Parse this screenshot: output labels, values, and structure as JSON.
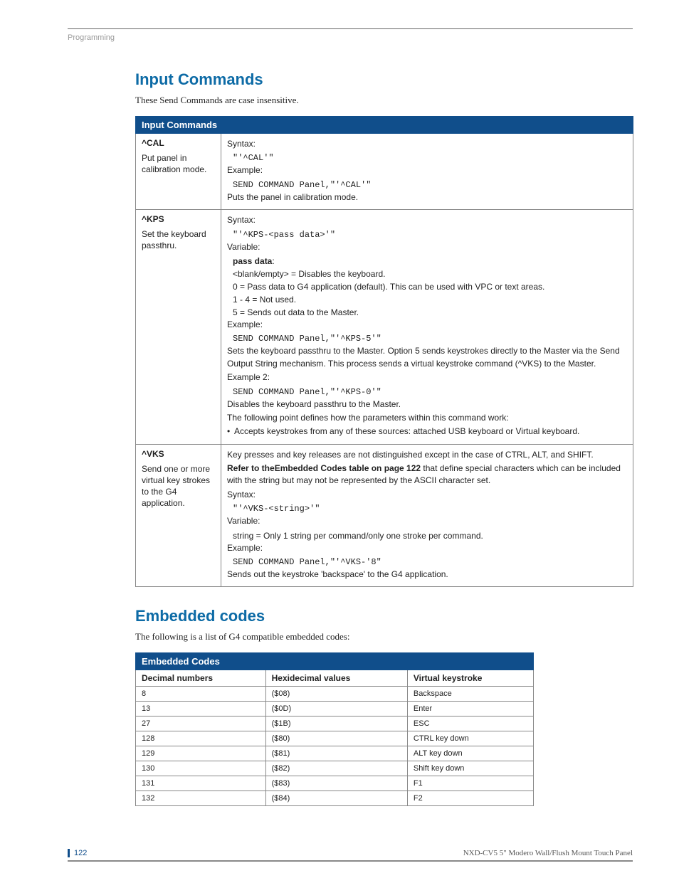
{
  "header": {
    "section": "Programming"
  },
  "section1": {
    "heading": "Input Commands",
    "intro": "These Send Commands are case insensitive.",
    "table_title": "Input Commands",
    "rows": [
      {
        "cmd": "^CAL",
        "desc": "Put panel in calibration mode.",
        "body": {
          "l1": "Syntax:",
          "c1": "\"'^CAL'\"",
          "l2": "Example:",
          "c2": "SEND COMMAND Panel,\"'^CAL'\"",
          "l3": "Puts the panel in calibration mode."
        }
      },
      {
        "cmd": "^KPS",
        "desc": "Set the keyboard passthru.",
        "body": {
          "l1": "Syntax:",
          "c1": "\"'^KPS-<pass data>'\"",
          "l2": "Variable:",
          "b1": "pass data",
          "b1s": ":",
          "i1": "<blank/empty> = Disables the keyboard.",
          "i2": "0 = Pass data to G4 application (default). This can be used with VPC or text areas.",
          "i3": "1 - 4 = Not used.",
          "i4": "5 = Sends out data to the Master.",
          "l3": "Example:",
          "c2": "SEND COMMAND Panel,\"'^KPS-5'\"",
          "l4": "Sets the keyboard passthru to the Master. Option 5 sends keystrokes directly to the Master via the Send Output String mechanism. This process sends a virtual keystroke command (^VKS) to the Master.",
          "l5": "Example 2:",
          "c3": "SEND COMMAND Panel,\"'^KPS-0'\"",
          "l6": "Disables the keyboard passthru to the Master.",
          "l7": "The following point defines how the parameters within this command work:",
          "bu1": "Accepts keystrokes from any of these sources: attached USB keyboard or Virtual keyboard."
        }
      },
      {
        "cmd": "^VKS",
        "desc": "Send one or more virtual key strokes to the G4 application.",
        "body": {
          "l1": "Key presses and key releases are not distinguished except in the case of CTRL, ALT, and SHIFT.",
          "b1a": "Refer to the",
          "b1b": "Embedded Codes table on page 122",
          "b1c": " that define special characters which can be included with the string but may not be represented by the ASCII character set.",
          "l2": "Syntax:",
          "c1": "\"'^VKS-<string>'\"",
          "l3": "Variable:",
          "i1": "string = Only 1 string per command/only one stroke per command.",
          "l4": "Example:",
          "c2": "SEND COMMAND Panel,\"'^VKS-'8\"",
          "l5": "Sends out the keystroke 'backspace' to the G4 application."
        }
      }
    ]
  },
  "section2": {
    "heading": "Embedded codes",
    "intro": "The following is a list of G4 compatible embedded codes:",
    "table_title": "Embedded Codes",
    "headers": {
      "h1": "Decimal numbers",
      "h2": "Hexidecimal values",
      "h3": "Virtual keystroke"
    },
    "rows": [
      {
        "d": "8",
        "h": "($08)",
        "v": "Backspace"
      },
      {
        "d": "13",
        "h": "($0D)",
        "v": "Enter"
      },
      {
        "d": "27",
        "h": "($1B)",
        "v": "ESC"
      },
      {
        "d": "128",
        "h": "($80)",
        "v": "CTRL key down"
      },
      {
        "d": "129",
        "h": "($81)",
        "v": "ALT key down"
      },
      {
        "d": "130",
        "h": "($82)",
        "v": "Shift key down"
      },
      {
        "d": "131",
        "h": "($83)",
        "v": "F1"
      },
      {
        "d": "132",
        "h": "($84)",
        "v": "F2"
      }
    ]
  },
  "footer": {
    "page": "122",
    "title": "NXD-CV5 5\" Modero Wall/Flush Mount Touch Panel"
  }
}
